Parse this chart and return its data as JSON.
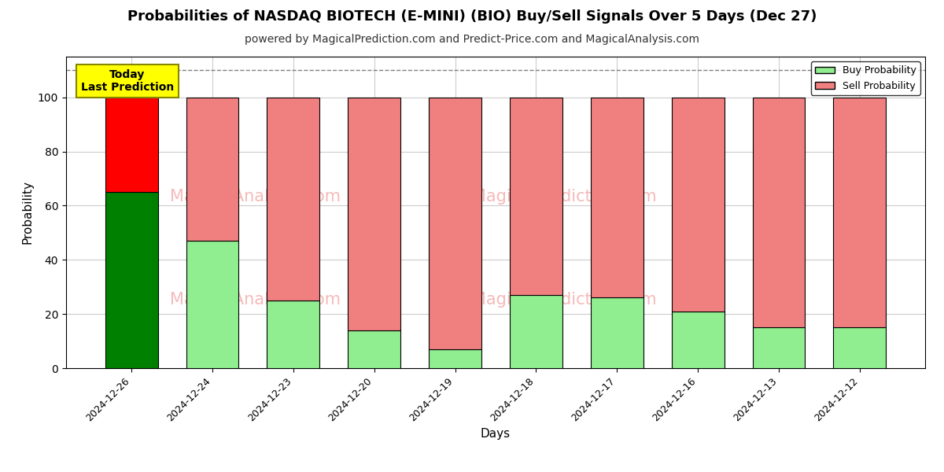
{
  "title": "Probabilities of NASDAQ BIOTECH (E-MINI) (BIO) Buy/Sell Signals Over 5 Days (Dec 27)",
  "subtitle": "powered by MagicalPrediction.com and Predict-Price.com and MagicalAnalysis.com",
  "xlabel": "Days",
  "ylabel": "Probability",
  "categories": [
    "2024-12-26",
    "2024-12-24",
    "2024-12-23",
    "2024-12-20",
    "2024-12-19",
    "2024-12-18",
    "2024-12-17",
    "2024-12-16",
    "2024-12-13",
    "2024-12-12"
  ],
  "buy_values": [
    65,
    47,
    25,
    14,
    7,
    27,
    26,
    21,
    15,
    15
  ],
  "sell_values": [
    35,
    53,
    75,
    86,
    93,
    73,
    74,
    79,
    85,
    85
  ],
  "today_buy_color": "#008000",
  "today_sell_color": "#FF0000",
  "buy_color": "#90EE90",
  "sell_color": "#F08080",
  "bar_edge_color": "#000000",
  "dashed_line_y": 110,
  "dashed_line_color": "#808080",
  "ylim": [
    0,
    115
  ],
  "yticks": [
    0,
    20,
    40,
    60,
    80,
    100
  ],
  "annotation_text": "Today\nLast Prediction",
  "annotation_bg_color": "#FFFF00",
  "annotation_text_color": "#000000",
  "watermark_color": "#F08080",
  "grid_color": "#cccccc",
  "background_color": "#ffffff",
  "title_fontsize": 13,
  "subtitle_fontsize": 10,
  "label_fontsize": 11,
  "tick_fontsize": 9
}
